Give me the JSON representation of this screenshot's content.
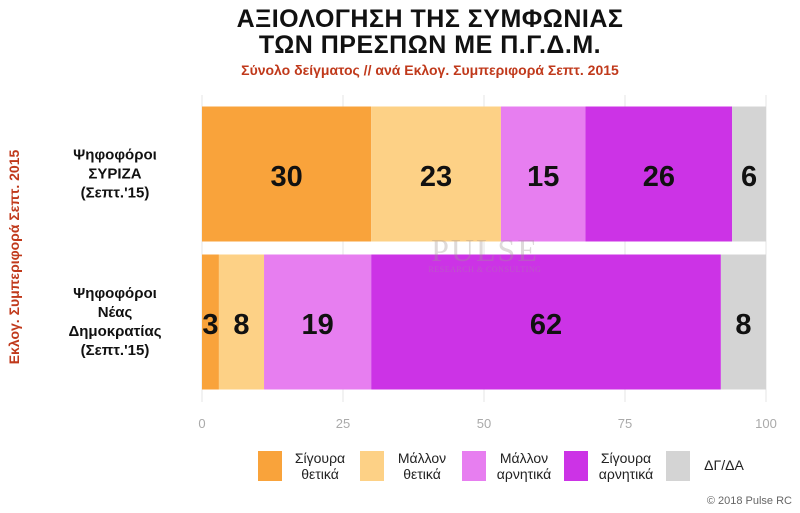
{
  "chart_data": {
    "type": "bar",
    "orientation": "horizontal",
    "stacked": true,
    "title_line1": "ΑΞΙΟΛΟΓΗΣΗ ΤΗΣ ΣΥΜΦΩΝΙΑΣ",
    "title_line2": "ΤΩΝ ΠΡΕΣΠΩΝ ΜΕ Π.Γ.Δ.Μ.",
    "subtitle": "Σύνολο δείγματος // ανά Εκλογ. Συμπεριφορά Σεπτ. 2015",
    "ylabel": "Εκλογ. Συμπεριφορά Σεπτ. 2015",
    "xlabel": "",
    "xlim": [
      0,
      100
    ],
    "xticks": [
      0,
      25,
      50,
      75,
      100
    ],
    "grid": true,
    "legend_position": "bottom",
    "categories": [
      {
        "lines": [
          "Ψηφοφόροι",
          "ΣΥΡΙΖΑ",
          "(Σεπτ.'15)"
        ]
      },
      {
        "lines": [
          "Ψηφοφόροι",
          "Νέας",
          "Δημοκρατίας",
          "(Σεπτ.'15)"
        ]
      }
    ],
    "series": [
      {
        "name_lines": [
          "Σίγουρα",
          "θετικά"
        ],
        "color": "#f9a33b",
        "values": [
          30,
          3
        ]
      },
      {
        "name_lines": [
          "Μάλλον",
          "θετικά"
        ],
        "color": "#fdd186",
        "values": [
          23,
          8
        ]
      },
      {
        "name_lines": [
          "Μάλλον",
          "αρνητικά"
        ],
        "color": "#e77ef0",
        "values": [
          15,
          19
        ]
      },
      {
        "name_lines": [
          "Σίγουρα",
          "αρνητικά"
        ],
        "color": "#cc33e6",
        "values": [
          26,
          62
        ]
      },
      {
        "name_lines": [
          "ΔΓ/ΔΑ"
        ],
        "color": "#d4d4d4",
        "values": [
          6,
          8
        ]
      }
    ]
  },
  "watermark": {
    "main": "PULSE",
    "sub": "RESEARCH & CONSULTING"
  },
  "copyright": "© 2018 Pulse RC"
}
